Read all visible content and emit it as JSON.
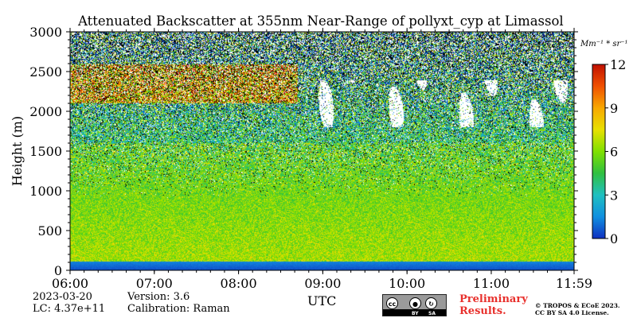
{
  "title": "Attenuated Backscatter at 355nm Near-Range of pollyxt_cyp at Limassol",
  "meta": {
    "date": "2023-03-20",
    "lc": "LC: 4.37e+11",
    "version": "Version: 3.6",
    "calibration": "Calibration: Raman"
  },
  "xlabel": "UTC",
  "ylabel": "Height (m)",
  "colorbar": {
    "unit": "Mm⁻¹ * sr⁻¹",
    "ticks": [
      "0",
      "3",
      "6",
      "9",
      "12"
    ]
  },
  "footer": {
    "preliminary_line1": "Preliminary",
    "preliminary_line2": "Results.",
    "copyright_line1": "© TROPOS & ECoE 2023.",
    "copyright_line2": "CC BY SA 4.0 License.",
    "cc_badge": {
      "by": "BY",
      "sa": "SA"
    }
  },
  "chart_data": {
    "type": "heatmap",
    "title": "Attenuated Backscatter at 355nm Near-Range of pollyxt_cyp at Limassol",
    "xlabel": "UTC",
    "ylabel": "Height (m)",
    "x_ticks": [
      "06:00",
      "07:00",
      "08:00",
      "09:00",
      "10:00",
      "11:00",
      "11:59"
    ],
    "x_range": [
      "06:00",
      "11:59"
    ],
    "y_ticks": [
      0,
      500,
      1000,
      1500,
      2000,
      2500,
      3000
    ],
    "ylim": [
      0,
      3000
    ],
    "colorbar": {
      "min": 0,
      "max": 12,
      "ticks": [
        0,
        3,
        6,
        9,
        12
      ],
      "unit": "Mm⁻¹ * sr⁻¹"
    },
    "colormap": [
      "#1030c0",
      "#1090e0",
      "#20c0c0",
      "#30c040",
      "#80e000",
      "#e8e000",
      "#f8a800",
      "#f05000",
      "#c01000"
    ],
    "grid": false,
    "features": {
      "near_surface_layer_m": [
        0,
        120
      ],
      "aerosol_layer_top_m": 1600,
      "cloud_layer_m": [
        1800,
        2400
      ],
      "cloud_time_range": [
        "08:40",
        "11:59"
      ]
    }
  }
}
